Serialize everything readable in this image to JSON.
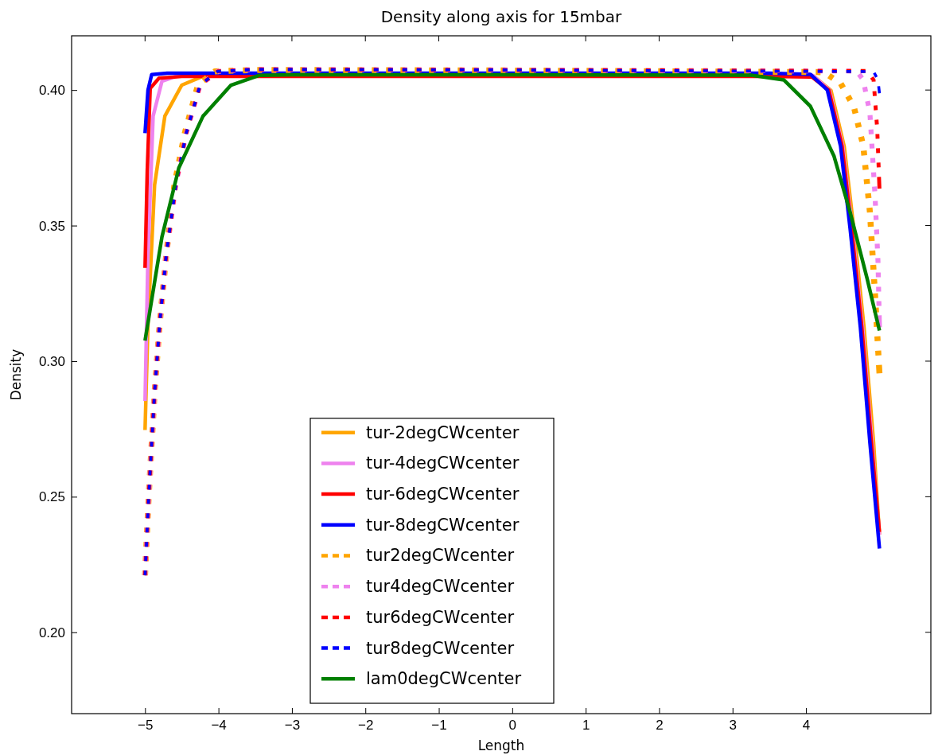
{
  "chart_data": {
    "type": "line",
    "title": "Density along axis for 15mbar",
    "xlabel": "Length",
    "ylabel": "Density",
    "xlim": [
      -6,
      5.7
    ],
    "ylim": [
      0.17,
      0.42
    ],
    "xticks": [
      {
        "value": -5,
        "label": "−5"
      },
      {
        "value": -4,
        "label": "−4"
      },
      {
        "value": -3,
        "label": "−3"
      },
      {
        "value": -2,
        "label": "−2"
      },
      {
        "value": -1,
        "label": "−1"
      },
      0,
      1,
      2,
      3,
      4
    ],
    "yticks": [
      {
        "value": 0.2,
        "label": "0.20"
      },
      {
        "value": 0.25,
        "label": "0.25"
      },
      {
        "value": 0.3,
        "label": "0.30"
      },
      {
        "value": 0.35,
        "label": "0.35"
      },
      {
        "value": 0.4,
        "label": "0.40"
      }
    ],
    "legend": "bottom",
    "grid": false,
    "series": [
      {
        "name": "tur-2degCWcenter",
        "color": "#ffa500",
        "line_style": "solid",
        "x": [
          -5,
          -4.96,
          -4.87,
          -4.73,
          -4.5,
          -4.22,
          -3.5,
          0,
          3.5,
          4.1,
          4.34,
          4.52,
          4.65,
          4.79,
          4.92,
          5.0
        ],
        "values": [
          0.2746,
          0.314,
          0.365,
          0.3904,
          0.4018,
          0.405,
          0.4056,
          0.4056,
          0.4056,
          0.4052,
          0.3998,
          0.3792,
          0.349,
          0.3125,
          0.27,
          0.236
        ]
      },
      {
        "name": "tur-4degCWcenter",
        "color": "#ee82ee",
        "line_style": "solid",
        "x": [
          -5,
          -4.96,
          -4.89,
          -4.77,
          -4.5,
          0,
          3.5,
          4.09,
          4.32,
          4.5,
          4.63,
          4.77,
          4.9,
          5.0
        ],
        "values": [
          0.2853,
          0.3395,
          0.3904,
          0.4032,
          0.4058,
          0.4058,
          0.4058,
          0.4054,
          0.4,
          0.3794,
          0.349,
          0.3125,
          0.27,
          0.236
        ]
      },
      {
        "name": "tur-6degCWcenter",
        "color": "#ff0000",
        "line_style": "solid",
        "x": [
          -5,
          -4.97,
          -4.93,
          -4.81,
          -4.5,
          0,
          3.5,
          4.08,
          4.31,
          4.49,
          4.62,
          4.76,
          4.89,
          5.0
        ],
        "values": [
          0.3344,
          0.37,
          0.4006,
          0.4044,
          0.405,
          0.405,
          0.405,
          0.4048,
          0.4,
          0.3794,
          0.349,
          0.3125,
          0.27,
          0.237
        ]
      },
      {
        "name": "tur-8degCWcenter",
        "color": "#0000ff",
        "line_style": "solid",
        "x": [
          -5,
          -4.96,
          -4.91,
          -4.7,
          0,
          3.5,
          4.06,
          4.29,
          4.47,
          4.6,
          4.74,
          4.87,
          5.0
        ],
        "values": [
          0.3841,
          0.4,
          0.4057,
          0.4062,
          0.4062,
          0.4062,
          0.4058,
          0.4,
          0.3794,
          0.349,
          0.3125,
          0.27,
          0.2309
        ]
      },
      {
        "name": "tur2degCWcenter",
        "color": "#ffa500",
        "line_style": "dashed",
        "x": [
          -5,
          -4.95,
          -4.87,
          -4.8,
          -4.71,
          -4.6,
          -4.46,
          -4.28,
          -4.05,
          -3.5,
          0,
          4.24,
          4.47,
          4.65,
          4.78,
          4.87,
          4.94,
          5.0
        ],
        "values": [
          0.221,
          0.2503,
          0.2885,
          0.314,
          0.3395,
          0.365,
          0.384,
          0.4018,
          0.4069,
          0.4074,
          0.4072,
          0.4066,
          0.4025,
          0.394,
          0.3794,
          0.355,
          0.3246,
          0.2955
        ]
      },
      {
        "name": "tur4degCWcenter",
        "color": "#ee82ee",
        "line_style": "dashed",
        "x": [
          -5,
          -4.95,
          -4.87,
          -4.8,
          -4.71,
          -4.58,
          -4.44,
          -4.25,
          -4.01,
          -3.5,
          0,
          4.69,
          4.78,
          4.87,
          4.94,
          4.98,
          5.0
        ],
        "values": [
          0.221,
          0.2503,
          0.2885,
          0.314,
          0.3395,
          0.365,
          0.384,
          0.4018,
          0.4069,
          0.4076,
          0.4074,
          0.407,
          0.4037,
          0.3915,
          0.361,
          0.3368,
          0.3125
        ]
      },
      {
        "name": "tur6degCWcenter",
        "color": "#ff0000",
        "line_style": "dashed",
        "x": [
          -5,
          -4.95,
          -4.87,
          -4.8,
          -4.71,
          -4.58,
          -4.44,
          -4.25,
          -4.01,
          -3.5,
          0,
          4.83,
          4.92,
          4.97,
          5.0
        ],
        "values": [
          0.221,
          0.2503,
          0.2885,
          0.314,
          0.3395,
          0.365,
          0.384,
          0.4018,
          0.4069,
          0.4076,
          0.4074,
          0.407,
          0.4037,
          0.3854,
          0.3636
        ]
      },
      {
        "name": "tur8degCWcenter",
        "color": "#0000ff",
        "line_style": "dashed",
        "x": [
          -5,
          -4.95,
          -4.87,
          -4.8,
          -4.71,
          -4.58,
          -4.44,
          -4.25,
          -4.01,
          -3.5,
          0,
          4.92,
          4.98,
          5.0
        ],
        "values": [
          0.221,
          0.2503,
          0.2885,
          0.314,
          0.3395,
          0.365,
          0.384,
          0.4018,
          0.4069,
          0.4076,
          0.4074,
          0.4068,
          0.4037,
          0.3988
        ]
      },
      {
        "name": "lam0degCWcenter",
        "color": "#008000",
        "line_style": "solid",
        "x": [
          -5,
          -4.77,
          -4.54,
          -4.21,
          -3.83,
          -3.45,
          -3,
          0,
          3.25,
          3.7,
          4.06,
          4.38,
          4.6,
          4.83,
          5.0
        ],
        "values": [
          0.3076,
          0.3458,
          0.3713,
          0.3904,
          0.4018,
          0.4054,
          0.4056,
          0.4056,
          0.4055,
          0.4037,
          0.394,
          0.3757,
          0.355,
          0.3307,
          0.3113
        ]
      }
    ]
  }
}
